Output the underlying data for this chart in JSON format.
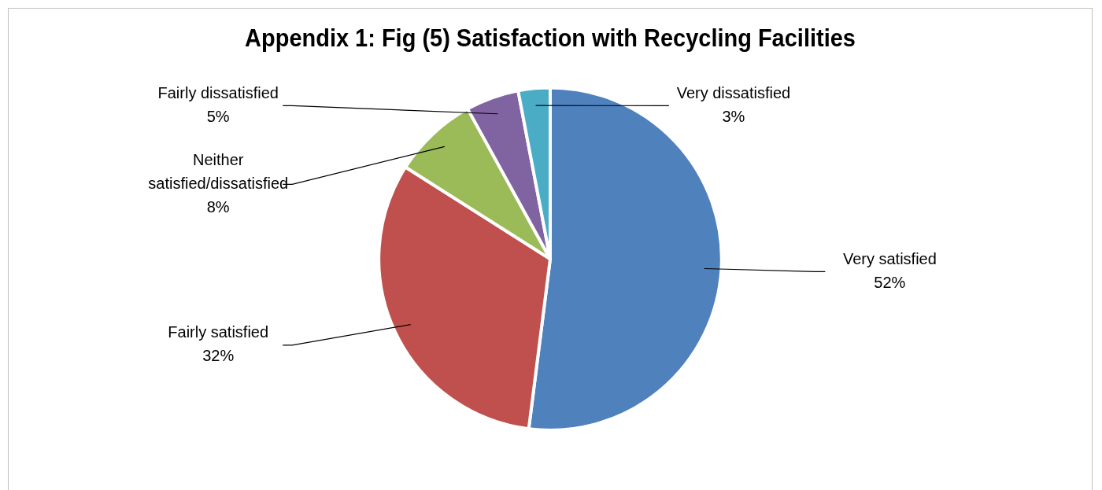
{
  "chart_data": {
    "type": "pie",
    "title": "Appendix 1: Fig (5) Satisfaction with Recycling Facilities",
    "categories": [
      "Very satisfied",
      "Fairly satisfied",
      "Neither satisfied/dissatisfied",
      "Fairly dissatisfied",
      "Very dissatisfied"
    ],
    "values": [
      52,
      32,
      8,
      5,
      3
    ],
    "colors": [
      "#4f81bd",
      "#c0504d",
      "#9bbb59",
      "#8064a2",
      "#4bacc6"
    ],
    "value_labels": [
      "52%",
      "32%",
      "8%",
      "5%",
      "3%"
    ],
    "legend": false
  }
}
